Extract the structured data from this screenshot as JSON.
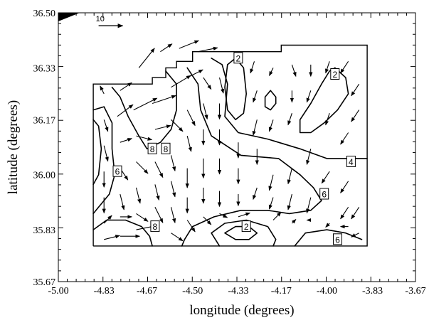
{
  "chart_data": {
    "type": "contour-vector",
    "xlabel": "longitude (degrees)",
    "ylabel": "latitude (degrees)",
    "xlim": [
      -5.0,
      -3.67
    ],
    "ylim": [
      35.67,
      36.5
    ],
    "xticks": [
      {
        "value": -5.0,
        "label": "-5.00"
      },
      {
        "value": -4.83,
        "label": "-4.83"
      },
      {
        "value": -4.67,
        "label": "-4.67"
      },
      {
        "value": -4.5,
        "label": "-4.50"
      },
      {
        "value": -4.33,
        "label": "-4.33"
      },
      {
        "value": -4.17,
        "label": "-4.17"
      },
      {
        "value": -4.0,
        "label": "-4.00"
      },
      {
        "value": -3.83,
        "label": "-3.83"
      },
      {
        "value": -3.67,
        "label": "-3.67"
      }
    ],
    "yticks": [
      {
        "value": 35.67,
        "label": "35.67"
      },
      {
        "value": 35.83,
        "label": "35.83"
      },
      {
        "value": 36.0,
        "label": "36.00"
      },
      {
        "value": 36.17,
        "label": "36.17"
      },
      {
        "value": 36.33,
        "label": "36.33"
      },
      {
        "value": 36.5,
        "label": "36.50"
      }
    ],
    "vector_scale": {
      "label": "10",
      "lon": -4.85,
      "lat": 36.46,
      "magnitude": 10
    },
    "domain_outline": [
      [
        -4.87,
        35.78
      ],
      [
        -3.85,
        35.78
      ],
      [
        -3.85,
        36.4
      ],
      [
        -4.17,
        36.4
      ],
      [
        -4.17,
        36.38
      ],
      [
        -4.5,
        36.38
      ],
      [
        -4.5,
        36.35
      ],
      [
        -4.56,
        36.35
      ],
      [
        -4.56,
        36.33
      ],
      [
        -4.6,
        36.33
      ],
      [
        -4.6,
        36.3
      ],
      [
        -4.65,
        36.3
      ],
      [
        -4.65,
        36.28
      ],
      [
        -4.87,
        36.28
      ],
      [
        -4.87,
        35.78
      ]
    ],
    "contours": [
      {
        "level": 2,
        "points": [
          [
            -4.34,
            36.36
          ],
          [
            -4.31,
            36.33
          ],
          [
            -4.3,
            36.25
          ],
          [
            -4.31,
            36.19
          ],
          [
            -4.34,
            36.17
          ],
          [
            -4.37,
            36.2
          ],
          [
            -4.38,
            36.27
          ],
          [
            -4.37,
            36.34
          ],
          [
            -4.34,
            36.36
          ]
        ]
      },
      {
        "level": 2,
        "points": [
          [
            -4.21,
            36.26
          ],
          [
            -4.19,
            36.24
          ],
          [
            -4.19,
            36.22
          ],
          [
            -4.21,
            36.2
          ],
          [
            -4.23,
            36.21
          ],
          [
            -4.23,
            36.24
          ],
          [
            -4.21,
            36.26
          ]
        ]
      },
      {
        "level": 2,
        "points": [
          [
            -3.97,
            36.33
          ],
          [
            -3.93,
            36.3
          ],
          [
            -3.92,
            36.25
          ],
          [
            -3.96,
            36.2
          ],
          [
            -4.01,
            36.16
          ],
          [
            -4.06,
            36.13
          ],
          [
            -4.1,
            36.13
          ],
          [
            -4.1,
            36.17
          ],
          [
            -4.06,
            36.22
          ],
          [
            -4.02,
            36.28
          ],
          [
            -3.99,
            36.32
          ],
          [
            -3.97,
            36.33
          ]
        ]
      },
      {
        "level": 2,
        "points": [
          [
            -4.38,
            35.82
          ],
          [
            -4.34,
            35.84
          ],
          [
            -4.29,
            35.84
          ],
          [
            -4.26,
            35.82
          ],
          [
            -4.29,
            35.8
          ],
          [
            -4.34,
            35.8
          ],
          [
            -4.38,
            35.82
          ]
        ]
      },
      {
        "level": 4,
        "points": [
          [
            -4.43,
            36.36
          ],
          [
            -4.39,
            36.34
          ],
          [
            -4.37,
            36.28
          ],
          [
            -4.38,
            36.18
          ],
          [
            -4.33,
            36.13
          ],
          [
            -4.22,
            36.11
          ],
          [
            -4.1,
            36.08
          ],
          [
            -4.0,
            36.05
          ],
          [
            -3.85,
            36.05
          ]
        ]
      },
      {
        "level": 4,
        "points": [
          [
            -4.4,
            35.78
          ],
          [
            -4.43,
            35.82
          ],
          [
            -4.38,
            35.85
          ],
          [
            -4.3,
            35.86
          ],
          [
            -4.22,
            35.84
          ],
          [
            -4.19,
            35.8
          ],
          [
            -4.2,
            35.78
          ]
        ]
      },
      {
        "level": 6,
        "points": [
          [
            -4.52,
            36.33
          ],
          [
            -4.48,
            36.28
          ],
          [
            -4.47,
            36.2
          ],
          [
            -4.43,
            36.12
          ],
          [
            -4.32,
            36.06
          ],
          [
            -4.18,
            36.05
          ],
          [
            -4.1,
            36.0
          ],
          [
            -4.05,
            35.96
          ],
          [
            -4.02,
            35.92
          ],
          [
            -4.06,
            35.89
          ],
          [
            -4.14,
            35.88
          ],
          [
            -4.22,
            35.89
          ],
          [
            -4.32,
            35.89
          ],
          [
            -4.42,
            35.87
          ],
          [
            -4.5,
            35.84
          ],
          [
            -4.53,
            35.8
          ],
          [
            -4.54,
            35.78
          ]
        ]
      },
      {
        "level": 6,
        "points": [
          [
            -4.87,
            36.2
          ],
          [
            -4.83,
            36.21
          ],
          [
            -4.8,
            36.16
          ],
          [
            -4.8,
            36.08
          ],
          [
            -4.79,
            36.0
          ],
          [
            -4.81,
            35.94
          ],
          [
            -4.85,
            35.9
          ],
          [
            -4.87,
            35.88
          ]
        ]
      },
      {
        "level": 6,
        "points": [
          [
            -4.12,
            35.78
          ],
          [
            -4.08,
            35.82
          ],
          [
            -4.0,
            35.83
          ],
          [
            -3.93,
            35.82
          ],
          [
            -3.87,
            35.8
          ]
        ]
      },
      {
        "level": 8,
        "points": [
          [
            -4.6,
            36.32
          ],
          [
            -4.56,
            36.28
          ],
          [
            -4.56,
            36.2
          ],
          [
            -4.58,
            36.14
          ],
          [
            -4.62,
            36.1
          ],
          [
            -4.67,
            36.08
          ],
          [
            -4.7,
            36.12
          ],
          [
            -4.74,
            36.18
          ],
          [
            -4.77,
            36.24
          ],
          [
            -4.8,
            36.27
          ]
        ]
      },
      {
        "level": 8,
        "points": [
          [
            -4.87,
            36.17
          ],
          [
            -4.85,
            36.15
          ],
          [
            -4.84,
            36.08
          ],
          [
            -4.85,
            36.0
          ],
          [
            -4.87,
            35.97
          ]
        ]
      },
      {
        "level": 8,
        "points": [
          [
            -4.87,
            35.83
          ],
          [
            -4.82,
            35.86
          ],
          [
            -4.75,
            35.86
          ],
          [
            -4.69,
            35.84
          ],
          [
            -4.66,
            35.81
          ],
          [
            -4.65,
            35.78
          ]
        ]
      }
    ],
    "contour_labels": [
      {
        "text": "2",
        "lon": -4.33,
        "lat": 36.36
      },
      {
        "text": "2",
        "lon": -3.97,
        "lat": 36.31
      },
      {
        "text": "4",
        "lon": -3.91,
        "lat": 36.04
      },
      {
        "text": "8",
        "lon": -4.65,
        "lat": 36.08
      },
      {
        "text": "8",
        "lon": -4.6,
        "lat": 36.08
      },
      {
        "text": "6",
        "lon": -4.78,
        "lat": 36.01
      },
      {
        "text": "6",
        "lon": -4.01,
        "lat": 35.94
      },
      {
        "text": "8",
        "lon": -4.64,
        "lat": 35.84
      },
      {
        "text": "2",
        "lon": -4.3,
        "lat": 35.84
      },
      {
        "text": "6",
        "lon": -3.96,
        "lat": 35.8
      }
    ],
    "vectors": [
      {
        "lon": -4.83,
        "lat": 36.25,
        "u": -1,
        "v": 2
      },
      {
        "lon": -4.77,
        "lat": 36.26,
        "u": 3,
        "v": 2
      },
      {
        "lon": -4.7,
        "lat": 36.33,
        "u": 4,
        "v": 5
      },
      {
        "lon": -4.62,
        "lat": 36.38,
        "u": 3,
        "v": 2
      },
      {
        "lon": -4.55,
        "lat": 36.39,
        "u": 5,
        "v": 2
      },
      {
        "lon": -4.48,
        "lat": 36.38,
        "u": 5,
        "v": 1
      },
      {
        "lon": -4.83,
        "lat": 36.17,
        "u": 1,
        "v": -3
      },
      {
        "lon": -4.78,
        "lat": 36.18,
        "u": 4,
        "v": 3
      },
      {
        "lon": -4.72,
        "lat": 36.2,
        "u": 6,
        "v": 3
      },
      {
        "lon": -4.65,
        "lat": 36.22,
        "u": 6,
        "v": 2
      },
      {
        "lon": -4.58,
        "lat": 36.27,
        "u": 5,
        "v": 3
      },
      {
        "lon": -4.52,
        "lat": 36.3,
        "u": 4,
        "v": 2
      },
      {
        "lon": -4.46,
        "lat": 36.3,
        "u": 2,
        "v": -3
      },
      {
        "lon": -4.4,
        "lat": 36.3,
        "u": 1,
        "v": -4
      },
      {
        "lon": -4.27,
        "lat": 36.35,
        "u": -1,
        "v": -3
      },
      {
        "lon": -4.2,
        "lat": 36.33,
        "u": -1,
        "v": -2
      },
      {
        "lon": -4.13,
        "lat": 36.34,
        "u": 1,
        "v": -3
      },
      {
        "lon": -4.06,
        "lat": 36.34,
        "u": 0,
        "v": -3
      },
      {
        "lon": -3.99,
        "lat": 36.35,
        "u": -1,
        "v": -3
      },
      {
        "lon": -3.92,
        "lat": 36.35,
        "u": -2,
        "v": -3
      },
      {
        "lon": -3.88,
        "lat": 36.28,
        "u": -2,
        "v": -3
      },
      {
        "lon": -4.83,
        "lat": 36.09,
        "u": 1,
        "v": -4
      },
      {
        "lon": -4.77,
        "lat": 36.1,
        "u": 3,
        "v": 1
      },
      {
        "lon": -4.71,
        "lat": 36.12,
        "u": 4,
        "v": -1
      },
      {
        "lon": -4.64,
        "lat": 36.14,
        "u": 4,
        "v": 1
      },
      {
        "lon": -4.58,
        "lat": 36.17,
        "u": 3,
        "v": -3
      },
      {
        "lon": -4.52,
        "lat": 36.2,
        "u": 2,
        "v": -4
      },
      {
        "lon": -4.46,
        "lat": 36.22,
        "u": 1,
        "v": -4
      },
      {
        "lon": -4.4,
        "lat": 36.22,
        "u": 0,
        "v": -4
      },
      {
        "lon": -4.26,
        "lat": 36.26,
        "u": -1,
        "v": -3
      },
      {
        "lon": -4.13,
        "lat": 36.26,
        "u": 0,
        "v": -3
      },
      {
        "lon": -4.06,
        "lat": 36.26,
        "u": -1,
        "v": -3
      },
      {
        "lon": -3.88,
        "lat": 36.2,
        "u": -2,
        "v": -3
      },
      {
        "lon": -4.83,
        "lat": 36.01,
        "u": 0,
        "v": -4
      },
      {
        "lon": -4.77,
        "lat": 36.02,
        "u": 2,
        "v": -3
      },
      {
        "lon": -4.71,
        "lat": 36.04,
        "u": 3,
        "v": -3
      },
      {
        "lon": -4.64,
        "lat": 36.04,
        "u": 2,
        "v": -4
      },
      {
        "lon": -4.58,
        "lat": 36.06,
        "u": 1,
        "v": -4
      },
      {
        "lon": -4.52,
        "lat": 36.12,
        "u": 1,
        "v": -4
      },
      {
        "lon": -4.46,
        "lat": 36.14,
        "u": 0,
        "v": -4
      },
      {
        "lon": -4.4,
        "lat": 36.14,
        "u": 0,
        "v": -4
      },
      {
        "lon": -4.33,
        "lat": 36.1,
        "u": 0,
        "v": -4
      },
      {
        "lon": -4.26,
        "lat": 36.17,
        "u": -1,
        "v": -4
      },
      {
        "lon": -4.2,
        "lat": 36.17,
        "u": -1,
        "v": -3
      },
      {
        "lon": -4.13,
        "lat": 36.19,
        "u": -1,
        "v": -3
      },
      {
        "lon": -3.99,
        "lat": 36.19,
        "u": -1,
        "v": -3
      },
      {
        "lon": -3.92,
        "lat": 36.13,
        "u": -2,
        "v": -3
      },
      {
        "lon": -4.83,
        "lat": 35.93,
        "u": 0,
        "v": -4
      },
      {
        "lon": -4.77,
        "lat": 35.94,
        "u": 1,
        "v": -4
      },
      {
        "lon": -4.71,
        "lat": 35.96,
        "u": 1,
        "v": -4
      },
      {
        "lon": -4.64,
        "lat": 35.97,
        "u": 1,
        "v": -4
      },
      {
        "lon": -4.58,
        "lat": 35.98,
        "u": 1,
        "v": -4
      },
      {
        "lon": -4.52,
        "lat": 36.02,
        "u": 0,
        "v": -5
      },
      {
        "lon": -4.46,
        "lat": 36.05,
        "u": 0,
        "v": -5
      },
      {
        "lon": -4.4,
        "lat": 36.05,
        "u": 0,
        "v": -4
      },
      {
        "lon": -4.33,
        "lat": 36.02,
        "u": 0,
        "v": -4
      },
      {
        "lon": -4.26,
        "lat": 36.08,
        "u": 0,
        "v": -4
      },
      {
        "lon": -4.2,
        "lat": 36.0,
        "u": -1,
        "v": -4
      },
      {
        "lon": -4.13,
        "lat": 36.02,
        "u": -1,
        "v": -4
      },
      {
        "lon": -4.06,
        "lat": 36.08,
        "u": -1,
        "v": -4
      },
      {
        "lon": -3.99,
        "lat": 36.01,
        "u": -2,
        "v": -3
      },
      {
        "lon": -3.92,
        "lat": 35.98,
        "u": -2,
        "v": -3
      },
      {
        "lon": -3.88,
        "lat": 35.9,
        "u": -2,
        "v": -3
      },
      {
        "lon": -4.83,
        "lat": 35.85,
        "u": 2,
        "v": 2
      },
      {
        "lon": -4.77,
        "lat": 35.87,
        "u": 3,
        "v": 0
      },
      {
        "lon": -4.71,
        "lat": 35.88,
        "u": 3,
        "v": -2
      },
      {
        "lon": -4.64,
        "lat": 35.9,
        "u": 2,
        "v": -4
      },
      {
        "lon": -4.58,
        "lat": 35.9,
        "u": 1,
        "v": -4
      },
      {
        "lon": -4.52,
        "lat": 35.93,
        "u": 0,
        "v": -4
      },
      {
        "lon": -4.46,
        "lat": 35.96,
        "u": 0,
        "v": -4
      },
      {
        "lon": -4.4,
        "lat": 35.95,
        "u": 0,
        "v": -4
      },
      {
        "lon": -4.33,
        "lat": 35.94,
        "u": 0,
        "v": -3
      },
      {
        "lon": -4.26,
        "lat": 35.96,
        "u": -1,
        "v": -3
      },
      {
        "lon": -4.2,
        "lat": 35.93,
        "u": -1,
        "v": -3
      },
      {
        "lon": -4.13,
        "lat": 35.94,
        "u": -1,
        "v": -4
      },
      {
        "lon": -4.06,
        "lat": 35.93,
        "u": -1,
        "v": -4
      },
      {
        "lon": -3.92,
        "lat": 35.9,
        "u": -2,
        "v": -3
      },
      {
        "lon": -4.83,
        "lat": 35.8,
        "u": 4,
        "v": 1
      },
      {
        "lon": -4.77,
        "lat": 35.81,
        "u": 5,
        "v": 0
      },
      {
        "lon": -4.71,
        "lat": 35.83,
        "u": 5,
        "v": 1
      },
      {
        "lon": -4.58,
        "lat": 35.82,
        "u": 3,
        "v": -2
      },
      {
        "lon": -4.52,
        "lat": 35.86,
        "u": 2,
        "v": -3
      },
      {
        "lon": -4.46,
        "lat": 35.87,
        "u": 2,
        "v": -2
      },
      {
        "lon": -4.4,
        "lat": 35.88,
        "u": 2,
        "v": -1
      },
      {
        "lon": -4.33,
        "lat": 35.87,
        "u": 3,
        "v": 1
      },
      {
        "lon": -4.2,
        "lat": 35.86,
        "u": 2,
        "v": 2
      },
      {
        "lon": -4.13,
        "lat": 35.85,
        "u": 1,
        "v": 1
      },
      {
        "lon": -4.06,
        "lat": 35.86,
        "u": -1,
        "v": 0
      },
      {
        "lon": -3.99,
        "lat": 35.85,
        "u": -1,
        "v": -1
      },
      {
        "lon": -3.92,
        "lat": 35.84,
        "u": -2,
        "v": 0
      },
      {
        "lon": -3.88,
        "lat": 35.82,
        "u": -2,
        "v": -1
      }
    ]
  }
}
